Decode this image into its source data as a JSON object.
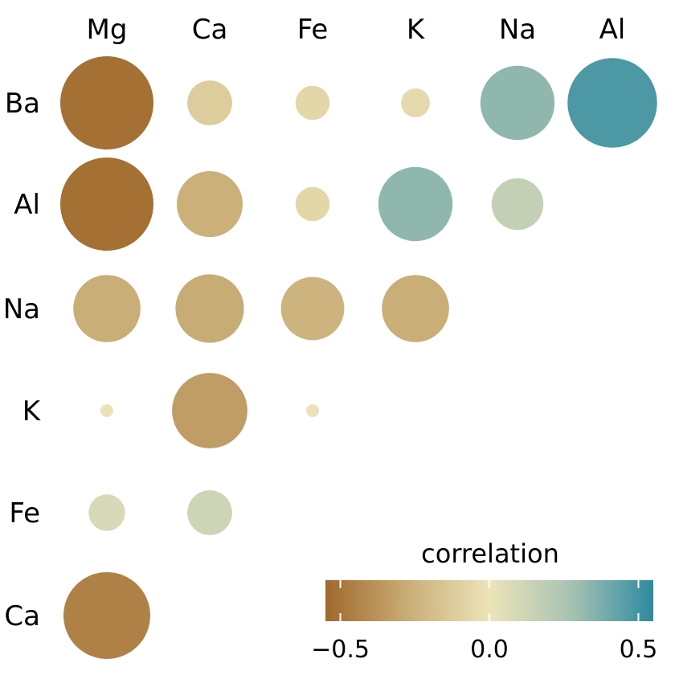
{
  "chart_data": {
    "type": "correlogram",
    "columns": [
      "Mg",
      "Ca",
      "Fe",
      "K",
      "Na",
      "Al"
    ],
    "rows": [
      "Ba",
      "Al",
      "Na",
      "K",
      "Fe",
      "Ca"
    ],
    "cells": [
      {
        "row": "Ba",
        "col": "Mg",
        "value": -0.52
      },
      {
        "row": "Ba",
        "col": "Ca",
        "value": -0.12
      },
      {
        "row": "Ba",
        "col": "Fe",
        "value": -0.07
      },
      {
        "row": "Ba",
        "col": "K",
        "value": -0.05
      },
      {
        "row": "Ba",
        "col": "Na",
        "value": 0.33
      },
      {
        "row": "Ba",
        "col": "Al",
        "value": 0.48
      },
      {
        "row": "Al",
        "col": "Mg",
        "value": -0.52
      },
      {
        "row": "Al",
        "col": "Ca",
        "value": -0.26
      },
      {
        "row": "Al",
        "col": "Fe",
        "value": -0.07
      },
      {
        "row": "Al",
        "col": "K",
        "value": 0.33
      },
      {
        "row": "Al",
        "col": "Na",
        "value": 0.16
      },
      {
        "row": "Na",
        "col": "Mg",
        "value": -0.27
      },
      {
        "row": "Na",
        "col": "Ca",
        "value": -0.28
      },
      {
        "row": "Na",
        "col": "Fe",
        "value": -0.24
      },
      {
        "row": "Na",
        "col": "K",
        "value": -0.27
      },
      {
        "row": "K",
        "col": "Mg",
        "value": -0.01
      },
      {
        "row": "K",
        "col": "Ca",
        "value": -0.34
      },
      {
        "row": "K",
        "col": "Fe",
        "value": -0.01
      },
      {
        "row": "Fe",
        "col": "Mg",
        "value": 0.08
      },
      {
        "row": "Fe",
        "col": "Ca",
        "value": 0.12
      },
      {
        "row": "Ca",
        "col": "Mg",
        "value": -0.45
      }
    ],
    "legend": {
      "title": "correlation",
      "min": -0.55,
      "max": 0.55,
      "ticks": [
        {
          "value": -0.5,
          "label": "−0.5"
        },
        {
          "value": 0.0,
          "label": "0.0"
        },
        {
          "value": 0.5,
          "label": "0.5"
        }
      ],
      "colors": [
        "#a0682c",
        "#c9ad76",
        "#ece4b9",
        "#a8c2b2",
        "#2d8aa0"
      ]
    }
  }
}
